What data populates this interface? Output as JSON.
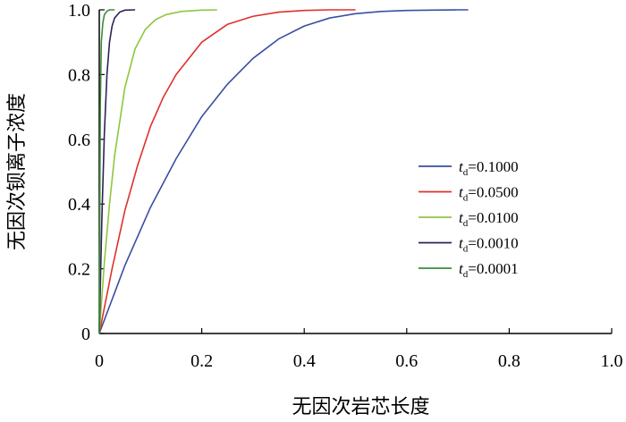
{
  "chart_data": {
    "type": "line",
    "xlabel": "无因次岩芯长度",
    "ylabel": "无因次钡离子浓度",
    "xlim": [
      0,
      1.0
    ],
    "ylim": [
      0,
      1.0
    ],
    "x_ticks": [
      "0",
      "0.2",
      "0.4",
      "0.6",
      "0.8",
      "1.0"
    ],
    "y_ticks": [
      "0",
      "0.2",
      "0.4",
      "0.6",
      "0.8",
      "1.0"
    ],
    "grid": false,
    "legend_position": "right-middle",
    "series": [
      {
        "name": "t_d=0.1000",
        "label_italic": "t",
        "label_sub": "d",
        "label_value": "=0.1000",
        "color": "#3a4ea1",
        "x": [
          0,
          0.05,
          0.1,
          0.15,
          0.2,
          0.25,
          0.3,
          0.35,
          0.4,
          0.45,
          0.5,
          0.55,
          0.6,
          0.65,
          0.7,
          0.72
        ],
        "y": [
          0,
          0.21,
          0.39,
          0.54,
          0.67,
          0.77,
          0.85,
          0.91,
          0.95,
          0.975,
          0.988,
          0.995,
          0.998,
          0.999,
          1.0,
          1.0
        ]
      },
      {
        "name": "t_d=0.0500",
        "label_italic": "t",
        "label_sub": "d",
        "label_value": "=0.0500",
        "color": "#e0302a",
        "x": [
          0,
          0.025,
          0.05,
          0.075,
          0.1,
          0.125,
          0.15,
          0.2,
          0.25,
          0.3,
          0.35,
          0.4,
          0.45,
          0.5
        ],
        "y": [
          0,
          0.2,
          0.38,
          0.52,
          0.64,
          0.73,
          0.8,
          0.9,
          0.955,
          0.98,
          0.993,
          0.998,
          1.0,
          1.0
        ]
      },
      {
        "name": "t_d=0.0100",
        "label_italic": "t",
        "label_sub": "d",
        "label_value": "=0.0100",
        "color": "#8fc63e",
        "x": [
          0,
          0.01,
          0.02,
          0.03,
          0.05,
          0.07,
          0.09,
          0.11,
          0.13,
          0.16,
          0.2,
          0.23
        ],
        "y": [
          0,
          0.22,
          0.4,
          0.55,
          0.76,
          0.88,
          0.94,
          0.97,
          0.985,
          0.995,
          0.999,
          1.0
        ]
      },
      {
        "name": "t_d=0.0010",
        "label_italic": "t",
        "label_sub": "d",
        "label_value": "=0.0010",
        "color": "#2e2257",
        "x": [
          0,
          0.005,
          0.01,
          0.015,
          0.02,
          0.025,
          0.03,
          0.04,
          0.05,
          0.07
        ],
        "y": [
          0,
          0.35,
          0.62,
          0.8,
          0.9,
          0.95,
          0.975,
          0.993,
          0.999,
          1.0
        ]
      },
      {
        "name": "t_d=0.0001",
        "label_italic": "t",
        "label_sub": "d",
        "label_value": "=0.0001",
        "color": "#3c8a3c",
        "x": [
          0,
          0.002,
          0.004,
          0.007,
          0.01,
          0.015,
          0.02,
          0.03
        ],
        "y": [
          0,
          0.7,
          0.9,
          0.96,
          0.985,
          0.996,
          1.0,
          1.0
        ]
      }
    ]
  }
}
